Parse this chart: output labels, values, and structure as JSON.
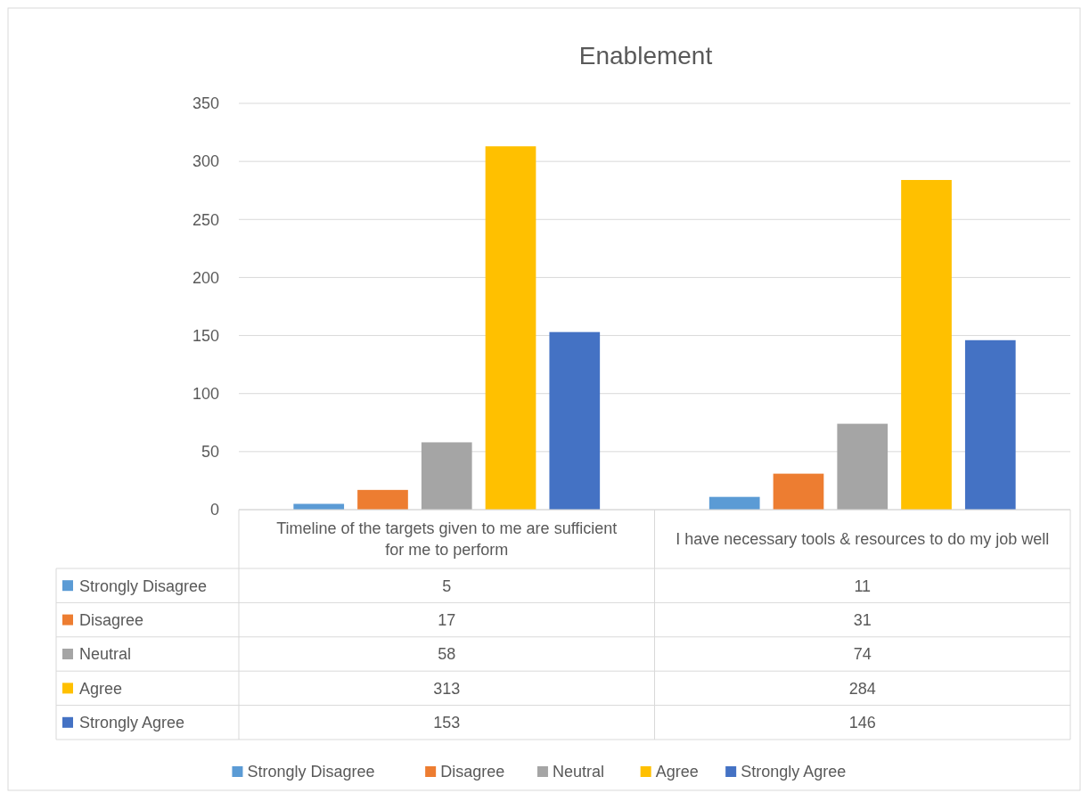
{
  "chart_data": {
    "type": "bar",
    "title": "Enablement",
    "categories": [
      "Timeline of the targets given to me are sufficient for me to perform",
      "I have necessary tools & resources to do my job well"
    ],
    "series": [
      {
        "name": "Strongly Disagree",
        "color": "#5b9bd5",
        "values": [
          5,
          11
        ]
      },
      {
        "name": "Disagree",
        "color": "#ed7d31",
        "values": [
          17,
          31
        ]
      },
      {
        "name": "Neutral",
        "color": "#a5a5a5",
        "values": [
          58,
          74
        ]
      },
      {
        "name": "Agree",
        "color": "#ffc000",
        "values": [
          313,
          284
        ]
      },
      {
        "name": "Strongly Agree",
        "color": "#4472c4",
        "values": [
          153,
          146
        ]
      }
    ],
    "ylim": [
      0,
      350
    ],
    "yticks": [
      0,
      50,
      100,
      150,
      200,
      250,
      300,
      350
    ],
    "grid": "y",
    "legend": "bottom",
    "data_labels": true
  }
}
